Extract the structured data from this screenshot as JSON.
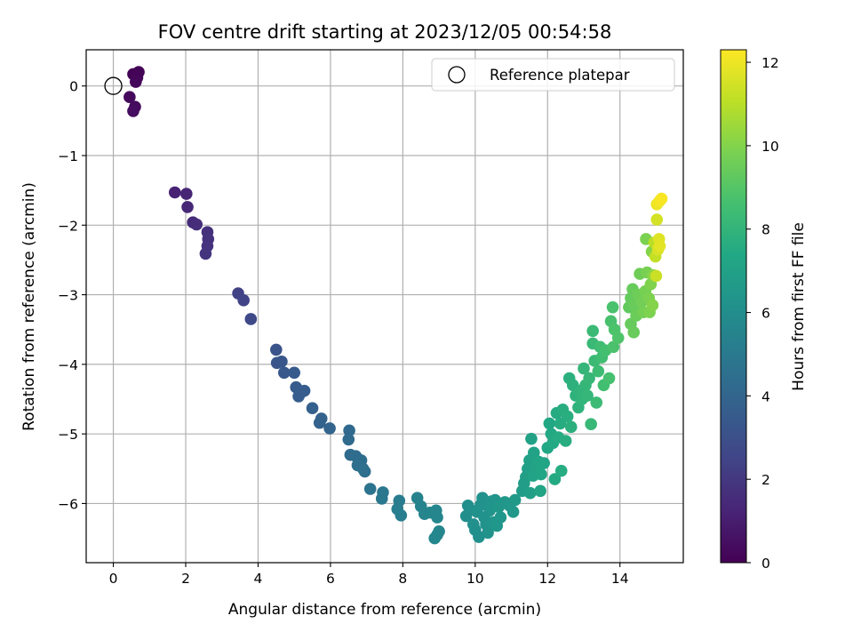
{
  "chart_data": {
    "type": "scatter",
    "title": "FOV centre drift starting at 2023/12/05 00:54:58",
    "xlabel": "Angular distance from reference (arcmin)",
    "ylabel": "Rotation from reference (arcmin)",
    "xlim": [
      -0.75,
      15.75
    ],
    "ylim": [
      -6.85,
      0.52
    ],
    "xticks": [
      0,
      2,
      4,
      6,
      8,
      10,
      12,
      14
    ],
    "yticks": [
      0,
      -1,
      -2,
      -3,
      -4,
      -5,
      -6
    ],
    "xtick_labels": [
      "0",
      "2",
      "4",
      "6",
      "8",
      "10",
      "12",
      "14"
    ],
    "ytick_labels": [
      "0",
      "−1",
      "−2",
      "−3",
      "−4",
      "−5",
      "−6"
    ],
    "grid": true,
    "legend": {
      "label": "Reference platepar",
      "position": "top-right"
    },
    "reference_point": {
      "x": 0,
      "y": 0
    },
    "colorbar": {
      "label": "Hours from first FF file",
      "colormap": "viridis",
      "range": [
        0,
        12.3
      ],
      "ticks": [
        0,
        2,
        4,
        6,
        8,
        10,
        12
      ],
      "tick_labels": [
        "0",
        "2",
        "4",
        "6",
        "8",
        "10",
        "12"
      ]
    },
    "points": [
      {
        "x": 0.55,
        "y": 0.17,
        "h": 0.05
      },
      {
        "x": 0.7,
        "y": 0.2,
        "h": 0.1
      },
      {
        "x": 0.66,
        "y": 0.12,
        "h": 0.15
      },
      {
        "x": 0.62,
        "y": 0.06,
        "h": 0.2
      },
      {
        "x": 0.45,
        "y": -0.16,
        "h": 0.3
      },
      {
        "x": 0.6,
        "y": -0.3,
        "h": 0.35
      },
      {
        "x": 0.55,
        "y": -0.36,
        "h": 0.4
      },
      {
        "x": 1.7,
        "y": -1.53,
        "h": 1.2
      },
      {
        "x": 2.02,
        "y": -1.55,
        "h": 1.3
      },
      {
        "x": 2.05,
        "y": -1.74,
        "h": 1.4
      },
      {
        "x": 2.2,
        "y": -1.96,
        "h": 1.5
      },
      {
        "x": 2.3,
        "y": -1.99,
        "h": 1.6
      },
      {
        "x": 2.6,
        "y": -2.1,
        "h": 1.7
      },
      {
        "x": 2.62,
        "y": -2.2,
        "h": 1.75
      },
      {
        "x": 2.6,
        "y": -2.3,
        "h": 1.8
      },
      {
        "x": 2.55,
        "y": -2.41,
        "h": 1.85
      },
      {
        "x": 3.45,
        "y": -2.98,
        "h": 2.4
      },
      {
        "x": 3.6,
        "y": -3.08,
        "h": 2.5
      },
      {
        "x": 3.8,
        "y": -3.35,
        "h": 2.7
      },
      {
        "x": 4.5,
        "y": -3.79,
        "h": 3.2
      },
      {
        "x": 4.52,
        "y": -3.98,
        "h": 3.25
      },
      {
        "x": 4.65,
        "y": -3.96,
        "h": 3.3
      },
      {
        "x": 4.72,
        "y": -4.12,
        "h": 3.35
      },
      {
        "x": 5.0,
        "y": -4.12,
        "h": 3.45
      },
      {
        "x": 5.05,
        "y": -4.33,
        "h": 3.5
      },
      {
        "x": 5.2,
        "y": -4.4,
        "h": 3.55
      },
      {
        "x": 5.28,
        "y": -4.38,
        "h": 3.6
      },
      {
        "x": 5.12,
        "y": -4.46,
        "h": 3.62
      },
      {
        "x": 5.5,
        "y": -4.63,
        "h": 3.75
      },
      {
        "x": 5.75,
        "y": -4.78,
        "h": 3.85
      },
      {
        "x": 5.7,
        "y": -4.84,
        "h": 3.88
      },
      {
        "x": 5.98,
        "y": -4.92,
        "h": 3.95
      },
      {
        "x": 6.52,
        "y": -4.95,
        "h": 4.2
      },
      {
        "x": 6.5,
        "y": -5.08,
        "h": 4.25
      },
      {
        "x": 6.55,
        "y": -5.3,
        "h": 4.3
      },
      {
        "x": 6.7,
        "y": -5.32,
        "h": 4.35
      },
      {
        "x": 6.85,
        "y": -5.38,
        "h": 4.4
      },
      {
        "x": 6.75,
        "y": -5.45,
        "h": 4.45
      },
      {
        "x": 6.95,
        "y": -5.54,
        "h": 4.5
      },
      {
        "x": 6.9,
        "y": -5.5,
        "h": 4.52
      },
      {
        "x": 7.1,
        "y": -5.79,
        "h": 4.65
      },
      {
        "x": 7.45,
        "y": -5.84,
        "h": 4.85
      },
      {
        "x": 7.42,
        "y": -5.93,
        "h": 4.9
      },
      {
        "x": 7.9,
        "y": -5.96,
        "h": 5.1
      },
      {
        "x": 7.85,
        "y": -6.08,
        "h": 5.15
      },
      {
        "x": 7.95,
        "y": -6.17,
        "h": 5.2
      },
      {
        "x": 8.4,
        "y": -5.92,
        "h": 5.4
      },
      {
        "x": 8.5,
        "y": -6.04,
        "h": 5.45
      },
      {
        "x": 8.6,
        "y": -6.15,
        "h": 5.5
      },
      {
        "x": 8.75,
        "y": -6.13,
        "h": 5.55
      },
      {
        "x": 8.92,
        "y": -6.1,
        "h": 5.6
      },
      {
        "x": 8.95,
        "y": -6.2,
        "h": 5.62
      },
      {
        "x": 9.0,
        "y": -6.4,
        "h": 5.65
      },
      {
        "x": 8.95,
        "y": -6.45,
        "h": 5.67
      },
      {
        "x": 8.88,
        "y": -6.5,
        "h": 5.68
      },
      {
        "x": 9.75,
        "y": -6.18,
        "h": 6.0
      },
      {
        "x": 9.8,
        "y": -6.03,
        "h": 6.02
      },
      {
        "x": 9.85,
        "y": -6.08,
        "h": 6.05
      },
      {
        "x": 9.95,
        "y": -6.3,
        "h": 6.08
      },
      {
        "x": 10.0,
        "y": -6.38,
        "h": 6.1
      },
      {
        "x": 10.1,
        "y": -6.48,
        "h": 6.12
      },
      {
        "x": 10.05,
        "y": -6.12,
        "h": 6.15
      },
      {
        "x": 10.15,
        "y": -6.02,
        "h": 6.18
      },
      {
        "x": 10.2,
        "y": -5.92,
        "h": 6.2
      },
      {
        "x": 10.25,
        "y": -6.2,
        "h": 6.22
      },
      {
        "x": 10.3,
        "y": -6.3,
        "h": 6.25
      },
      {
        "x": 10.35,
        "y": -6.42,
        "h": 6.28
      },
      {
        "x": 10.4,
        "y": -6.1,
        "h": 6.3
      },
      {
        "x": 10.45,
        "y": -5.97,
        "h": 6.32
      },
      {
        "x": 10.55,
        "y": -5.95,
        "h": 6.35
      },
      {
        "x": 10.5,
        "y": -6.27,
        "h": 6.38
      },
      {
        "x": 10.6,
        "y": -6.32,
        "h": 6.4
      },
      {
        "x": 10.7,
        "y": -6.2,
        "h": 6.42
      },
      {
        "x": 10.65,
        "y": -6.05,
        "h": 6.45
      },
      {
        "x": 10.82,
        "y": -5.98,
        "h": 6.48
      },
      {
        "x": 10.95,
        "y": -6.03,
        "h": 6.5
      },
      {
        "x": 11.05,
        "y": -6.12,
        "h": 6.55
      },
      {
        "x": 11.1,
        "y": -5.95,
        "h": 6.6
      },
      {
        "x": 11.3,
        "y": -5.82,
        "h": 6.75
      },
      {
        "x": 11.35,
        "y": -5.71,
        "h": 6.8
      },
      {
        "x": 11.4,
        "y": -5.62,
        "h": 6.85
      },
      {
        "x": 11.45,
        "y": -5.5,
        "h": 6.9
      },
      {
        "x": 11.5,
        "y": -5.38,
        "h": 6.95
      },
      {
        "x": 11.52,
        "y": -5.85,
        "h": 6.97
      },
      {
        "x": 11.55,
        "y": -5.07,
        "h": 7.0
      },
      {
        "x": 11.62,
        "y": -5.27,
        "h": 7.05
      },
      {
        "x": 11.6,
        "y": -5.6,
        "h": 7.08
      },
      {
        "x": 11.7,
        "y": -5.5,
        "h": 7.1
      },
      {
        "x": 11.75,
        "y": -5.4,
        "h": 7.15
      },
      {
        "x": 11.8,
        "y": -5.82,
        "h": 7.18
      },
      {
        "x": 11.82,
        "y": -5.58,
        "h": 7.2
      },
      {
        "x": 11.9,
        "y": -5.42,
        "h": 7.22
      },
      {
        "x": 12.0,
        "y": -5.2,
        "h": 7.3
      },
      {
        "x": 12.05,
        "y": -4.85,
        "h": 7.35
      },
      {
        "x": 12.1,
        "y": -5.0,
        "h": 7.4
      },
      {
        "x": 12.15,
        "y": -5.13,
        "h": 7.42
      },
      {
        "x": 12.2,
        "y": -5.65,
        "h": 7.45
      },
      {
        "x": 12.25,
        "y": -4.7,
        "h": 7.5
      },
      {
        "x": 12.3,
        "y": -5.05,
        "h": 7.52
      },
      {
        "x": 12.35,
        "y": -4.85,
        "h": 7.55
      },
      {
        "x": 12.38,
        "y": -5.53,
        "h": 7.58
      },
      {
        "x": 12.42,
        "y": -4.65,
        "h": 7.6
      },
      {
        "x": 12.5,
        "y": -5.1,
        "h": 7.65
      },
      {
        "x": 12.55,
        "y": -4.75,
        "h": 7.7
      },
      {
        "x": 12.6,
        "y": -4.2,
        "h": 7.75
      },
      {
        "x": 12.65,
        "y": -4.9,
        "h": 7.78
      },
      {
        "x": 12.7,
        "y": -4.3,
        "h": 7.8
      },
      {
        "x": 12.78,
        "y": -4.45,
        "h": 7.85
      },
      {
        "x": 12.85,
        "y": -4.62,
        "h": 7.9
      },
      {
        "x": 12.9,
        "y": -4.38,
        "h": 7.95
      },
      {
        "x": 12.95,
        "y": -4.5,
        "h": 8.0
      },
      {
        "x": 13.0,
        "y": -4.06,
        "h": 8.05
      },
      {
        "x": 13.05,
        "y": -4.3,
        "h": 8.1
      },
      {
        "x": 13.1,
        "y": -4.45,
        "h": 8.12
      },
      {
        "x": 13.15,
        "y": -4.2,
        "h": 8.15
      },
      {
        "x": 13.2,
        "y": -4.86,
        "h": 8.2
      },
      {
        "x": 13.25,
        "y": -3.7,
        "h": 8.25
      },
      {
        "x": 13.25,
        "y": -3.52,
        "h": 8.28
      },
      {
        "x": 13.3,
        "y": -3.95,
        "h": 8.3
      },
      {
        "x": 13.35,
        "y": -4.55,
        "h": 8.35
      },
      {
        "x": 13.4,
        "y": -4.1,
        "h": 8.4
      },
      {
        "x": 13.45,
        "y": -3.75,
        "h": 8.45
      },
      {
        "x": 13.5,
        "y": -3.9,
        "h": 8.5
      },
      {
        "x": 13.55,
        "y": -4.3,
        "h": 8.55
      },
      {
        "x": 13.6,
        "y": -3.8,
        "h": 8.6
      },
      {
        "x": 13.7,
        "y": -4.2,
        "h": 8.65
      },
      {
        "x": 13.75,
        "y": -3.38,
        "h": 8.7
      },
      {
        "x": 13.8,
        "y": -3.18,
        "h": 8.75
      },
      {
        "x": 13.82,
        "y": -3.75,
        "h": 8.78
      },
      {
        "x": 13.85,
        "y": -3.5,
        "h": 8.8
      },
      {
        "x": 13.95,
        "y": -3.62,
        "h": 8.85
      },
      {
        "x": 14.25,
        "y": -3.18,
        "h": 9.3
      },
      {
        "x": 14.3,
        "y": -3.05,
        "h": 9.35
      },
      {
        "x": 14.3,
        "y": -3.42,
        "h": 9.38
      },
      {
        "x": 14.35,
        "y": -2.92,
        "h": 9.4
      },
      {
        "x": 14.38,
        "y": -3.54,
        "h": 9.42
      },
      {
        "x": 14.4,
        "y": -3.15,
        "h": 9.45
      },
      {
        "x": 14.45,
        "y": -3.3,
        "h": 9.5
      },
      {
        "x": 14.5,
        "y": -3.0,
        "h": 9.55
      },
      {
        "x": 14.55,
        "y": -2.7,
        "h": 9.6
      },
      {
        "x": 14.6,
        "y": -3.1,
        "h": 9.65
      },
      {
        "x": 14.65,
        "y": -3.25,
        "h": 9.7
      },
      {
        "x": 14.7,
        "y": -2.95,
        "h": 9.75
      },
      {
        "x": 14.75,
        "y": -2.68,
        "h": 9.8
      },
      {
        "x": 14.72,
        "y": -2.2,
        "h": 9.85
      },
      {
        "x": 14.8,
        "y": -3.05,
        "h": 9.88
      },
      {
        "x": 14.82,
        "y": -3.25,
        "h": 9.9
      },
      {
        "x": 14.85,
        "y": -2.85,
        "h": 9.95
      },
      {
        "x": 14.88,
        "y": -2.38,
        "h": 10.0
      },
      {
        "x": 14.9,
        "y": -3.15,
        "h": 10.05
      },
      {
        "x": 14.92,
        "y": -2.72,
        "h": 10.1
      },
      {
        "x": 14.95,
        "y": -2.25,
        "h": 11.0
      },
      {
        "x": 14.98,
        "y": -2.45,
        "h": 11.2
      },
      {
        "x": 15.0,
        "y": -2.73,
        "h": 11.3
      },
      {
        "x": 15.02,
        "y": -1.92,
        "h": 11.5
      },
      {
        "x": 15.05,
        "y": -2.35,
        "h": 11.6
      },
      {
        "x": 15.08,
        "y": -2.2,
        "h": 11.7
      },
      {
        "x": 15.1,
        "y": -2.3,
        "h": 11.8
      },
      {
        "x": 15.02,
        "y": -1.7,
        "h": 12.0
      },
      {
        "x": 15.1,
        "y": -1.65,
        "h": 12.1
      },
      {
        "x": 15.15,
        "y": -1.62,
        "h": 12.2
      }
    ]
  }
}
